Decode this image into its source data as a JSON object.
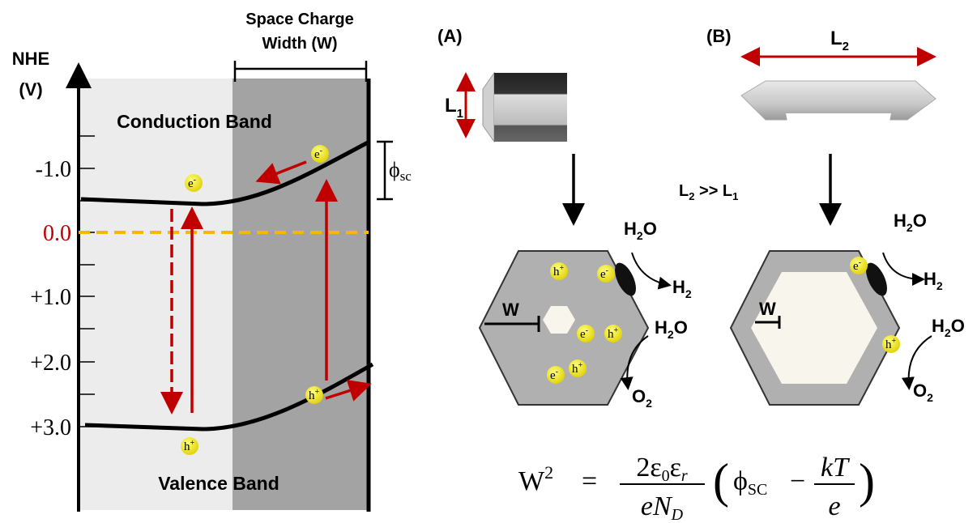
{
  "energy_diagram": {
    "axis_label": [
      "NHE",
      "(V)"
    ],
    "tick_labels": [
      "-1.0",
      "0.0",
      "+1.0",
      "+2.0",
      "+3.0"
    ],
    "space_charge_label": [
      "Space Charge",
      "Width (W)"
    ],
    "conduction_band": "Conduction Band",
    "valence_band": "Valence Band",
    "phi_sc": {
      "symbol": "ϕ",
      "sub": "sc"
    }
  },
  "carriers": {
    "electron": {
      "base": "e",
      "sup": "-"
    },
    "hole": {
      "base": "h",
      "sup": "+"
    }
  },
  "panels": [
    {
      "label": "(A)",
      "dimension": {
        "base": "L",
        "sub": "1"
      },
      "width_label": "W"
    },
    {
      "label": "(B)",
      "dimension": {
        "base": "L",
        "sub": "2"
      },
      "width_label": "W"
    }
  ],
  "comparison": [
    "L",
    "2",
    " >> L",
    "1"
  ],
  "reactions": {
    "water": {
      "base": "H",
      "sub": "2",
      "tail": "O"
    },
    "hydrogen": {
      "base": "H",
      "sub": "2"
    },
    "oxygen": {
      "base": "O",
      "sub": "2"
    }
  },
  "equation": {
    "lhs": "W",
    "lhs_sup": "2",
    "equals": "=",
    "num": [
      "2ε",
      "0",
      "ε",
      "r"
    ],
    "den": [
      "eN",
      "D"
    ],
    "open": "(",
    "phi": "ϕ",
    "phi_sub": "SC",
    "minus": "−",
    "kt": "kT",
    "e": "e",
    "close": ")"
  }
}
